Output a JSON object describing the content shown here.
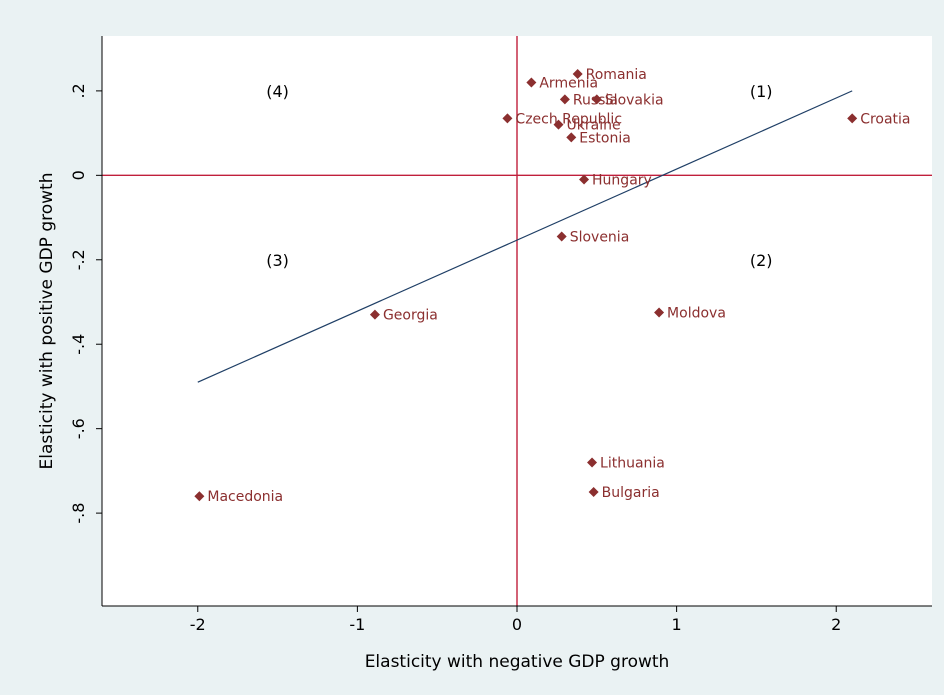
{
  "chart_data": {
    "type": "scatter",
    "xlabel": "Elasticity with negative GDP growth",
    "ylabel": "Elasticity with positive GDP growth",
    "xlim": [
      -2.6,
      2.6
    ],
    "ylim": [
      -1.02,
      0.33
    ],
    "x_ticks": [
      {
        "value": -2,
        "label": "-2"
      },
      {
        "value": -1,
        "label": "-1"
      },
      {
        "value": 0,
        "label": "0"
      },
      {
        "value": 1,
        "label": "1"
      },
      {
        "value": 2,
        "label": "2"
      }
    ],
    "y_ticks": [
      {
        "value": 0.2,
        "label": ".2"
      },
      {
        "value": 0,
        "label": "0"
      },
      {
        "value": -0.2,
        "label": "-.2"
      },
      {
        "value": -0.4,
        "label": "-.4"
      },
      {
        "value": -0.6,
        "label": "-.6"
      },
      {
        "value": -0.8,
        "label": "-.8"
      }
    ],
    "points": [
      {
        "label": "Romania",
        "x": 0.38,
        "y": 0.24
      },
      {
        "label": "Armenia",
        "x": 0.09,
        "y": 0.22
      },
      {
        "label": "Russia",
        "x": 0.3,
        "y": 0.18
      },
      {
        "label": "Slovakia",
        "x": 0.5,
        "y": 0.18
      },
      {
        "label": "Croatia",
        "x": 2.1,
        "y": 0.135
      },
      {
        "label": "Czech Republic",
        "x": -0.06,
        "y": 0.135
      },
      {
        "label": "Ukraine",
        "x": 0.26,
        "y": 0.12
      },
      {
        "label": "Estonia",
        "x": 0.34,
        "y": 0.09
      },
      {
        "label": "Hungary",
        "x": 0.42,
        "y": -0.01
      },
      {
        "label": "Slovenia",
        "x": 0.28,
        "y": -0.145
      },
      {
        "label": "Georgia",
        "x": -0.89,
        "y": -0.33
      },
      {
        "label": "Moldova",
        "x": 0.89,
        "y": -0.325
      },
      {
        "label": "Lithuania",
        "x": 0.47,
        "y": -0.68
      },
      {
        "label": "Bulgaria",
        "x": 0.48,
        "y": -0.75
      },
      {
        "label": "Macedonia",
        "x": -1.99,
        "y": -0.76
      }
    ],
    "fit_line": {
      "x": [
        -2.0,
        2.1
      ],
      "y": [
        -0.49,
        0.2
      ]
    },
    "reference_lines": {
      "x": 0,
      "y": 0
    },
    "quadrant_labels": [
      {
        "text": "(1)",
        "x": 1.53,
        "y": 0.2
      },
      {
        "text": "(2)",
        "x": 1.53,
        "y": -0.2
      },
      {
        "text": "(3)",
        "x": -1.5,
        "y": -0.2
      },
      {
        "text": "(4)",
        "x": -1.5,
        "y": 0.2
      }
    ],
    "colors": {
      "point": "#8b2f2f",
      "reference": "#c01f3c",
      "fit": "#1f3f66",
      "plot_bg": "#ffffff",
      "outer_bg": "#eaf2f3"
    }
  }
}
